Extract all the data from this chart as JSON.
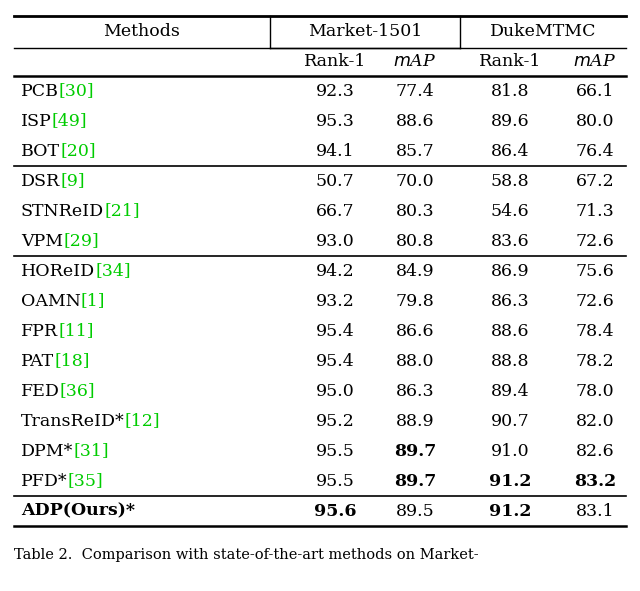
{
  "title": "Table 2.  Comparison with state-of-the-art methods on Market-",
  "rows": [
    {
      "method": "PCB",
      "ref": "[30]",
      "m1r1": "92.3",
      "m1map": "77.4",
      "d1r1": "81.8",
      "d1map": "66.1",
      "bold_m1r1": false,
      "bold_m1map": false,
      "bold_d1r1": false,
      "bold_d1map": false,
      "bold_method": false,
      "group_sep_before": true
    },
    {
      "method": "ISP",
      "ref": "[49]",
      "m1r1": "95.3",
      "m1map": "88.6",
      "d1r1": "89.6",
      "d1map": "80.0",
      "bold_m1r1": false,
      "bold_m1map": false,
      "bold_d1r1": false,
      "bold_d1map": false,
      "bold_method": false,
      "group_sep_before": false
    },
    {
      "method": "BOT",
      "ref": "[20]",
      "m1r1": "94.1",
      "m1map": "85.7",
      "d1r1": "86.4",
      "d1map": "76.4",
      "bold_m1r1": false,
      "bold_m1map": false,
      "bold_d1r1": false,
      "bold_d1map": false,
      "bold_method": false,
      "group_sep_before": false
    },
    {
      "method": "DSR",
      "ref": "[9]",
      "m1r1": "50.7",
      "m1map": "70.0",
      "d1r1": "58.8",
      "d1map": "67.2",
      "bold_m1r1": false,
      "bold_m1map": false,
      "bold_d1r1": false,
      "bold_d1map": false,
      "bold_method": false,
      "group_sep_before": true
    },
    {
      "method": "STNReID",
      "ref": "[21]",
      "m1r1": "66.7",
      "m1map": "80.3",
      "d1r1": "54.6",
      "d1map": "71.3",
      "bold_m1r1": false,
      "bold_m1map": false,
      "bold_d1r1": false,
      "bold_d1map": false,
      "bold_method": false,
      "group_sep_before": false
    },
    {
      "method": "VPM",
      "ref": "[29]",
      "m1r1": "93.0",
      "m1map": "80.8",
      "d1r1": "83.6",
      "d1map": "72.6",
      "bold_m1r1": false,
      "bold_m1map": false,
      "bold_d1r1": false,
      "bold_d1map": false,
      "bold_method": false,
      "group_sep_before": false
    },
    {
      "method": "HOReID",
      "ref": "[34]",
      "m1r1": "94.2",
      "m1map": "84.9",
      "d1r1": "86.9",
      "d1map": "75.6",
      "bold_m1r1": false,
      "bold_m1map": false,
      "bold_d1r1": false,
      "bold_d1map": false,
      "bold_method": false,
      "group_sep_before": true
    },
    {
      "method": "OAMN",
      "ref": "[1]",
      "m1r1": "93.2",
      "m1map": "79.8",
      "d1r1": "86.3",
      "d1map": "72.6",
      "bold_m1r1": false,
      "bold_m1map": false,
      "bold_d1r1": false,
      "bold_d1map": false,
      "bold_method": false,
      "group_sep_before": false
    },
    {
      "method": "FPR",
      "ref": "[11]",
      "m1r1": "95.4",
      "m1map": "86.6",
      "d1r1": "88.6",
      "d1map": "78.4",
      "bold_m1r1": false,
      "bold_m1map": false,
      "bold_d1r1": false,
      "bold_d1map": false,
      "bold_method": false,
      "group_sep_before": false
    },
    {
      "method": "PAT",
      "ref": "[18]",
      "m1r1": "95.4",
      "m1map": "88.0",
      "d1r1": "88.8",
      "d1map": "78.2",
      "bold_m1r1": false,
      "bold_m1map": false,
      "bold_d1r1": false,
      "bold_d1map": false,
      "bold_method": false,
      "group_sep_before": false
    },
    {
      "method": "FED",
      "ref": "[36]",
      "m1r1": "95.0",
      "m1map": "86.3",
      "d1r1": "89.4",
      "d1map": "78.0",
      "bold_m1r1": false,
      "bold_m1map": false,
      "bold_d1r1": false,
      "bold_d1map": false,
      "bold_method": false,
      "group_sep_before": false
    },
    {
      "method": "TransReID*",
      "ref": "[12]",
      "m1r1": "95.2",
      "m1map": "88.9",
      "d1r1": "90.7",
      "d1map": "82.0",
      "bold_m1r1": false,
      "bold_m1map": false,
      "bold_d1r1": false,
      "bold_d1map": false,
      "bold_method": false,
      "group_sep_before": false
    },
    {
      "method": "DPM*",
      "ref": "[31]",
      "m1r1": "95.5",
      "m1map": "89.7",
      "d1r1": "91.0",
      "d1map": "82.6",
      "bold_m1r1": false,
      "bold_m1map": true,
      "bold_d1r1": false,
      "bold_d1map": false,
      "bold_method": false,
      "group_sep_before": false
    },
    {
      "method": "PFD*",
      "ref": "[35]",
      "m1r1": "95.5",
      "m1map": "89.7",
      "d1r1": "91.2",
      "d1map": "83.2",
      "bold_m1r1": false,
      "bold_m1map": true,
      "bold_d1r1": true,
      "bold_d1map": true,
      "bold_method": false,
      "group_sep_before": false
    },
    {
      "method": "ADP(Ours)*",
      "ref": "",
      "m1r1": "95.6",
      "m1map": "89.5",
      "d1r1": "91.2",
      "d1map": "83.1",
      "bold_m1r1": true,
      "bold_m1map": false,
      "bold_d1r1": true,
      "bold_d1map": false,
      "bold_method": true,
      "group_sep_before": true
    }
  ],
  "bg_color": "#ffffff",
  "text_color": "#000000",
  "ref_color": "#00cc00",
  "line_color": "#000000",
  "fontsize": 12.5,
  "caption_fontsize": 10.5
}
